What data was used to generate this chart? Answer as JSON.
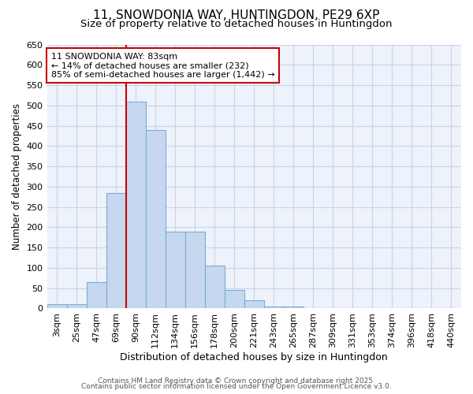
{
  "title1": "11, SNOWDONIA WAY, HUNTINGDON, PE29 6XP",
  "title2": "Size of property relative to detached houses in Huntingdon",
  "xlabel": "Distribution of detached houses by size in Huntingdon",
  "ylabel": "Number of detached properties",
  "bin_labels": [
    "3sqm",
    "25sqm",
    "47sqm",
    "69sqm",
    "90sqm",
    "112sqm",
    "134sqm",
    "156sqm",
    "178sqm",
    "200sqm",
    "221sqm",
    "243sqm",
    "265sqm",
    "287sqm",
    "309sqm",
    "331sqm",
    "353sqm",
    "374sqm",
    "396sqm",
    "418sqm",
    "440sqm"
  ],
  "bar_heights": [
    10,
    10,
    65,
    285,
    510,
    440,
    190,
    190,
    105,
    45,
    20,
    5,
    5,
    0,
    0,
    0,
    0,
    0,
    0,
    0,
    0
  ],
  "bar_color": "#c5d8f0",
  "bar_edge_color": "#7badd4",
  "red_line_x": 4,
  "ylim": [
    0,
    650
  ],
  "yticks": [
    0,
    50,
    100,
    150,
    200,
    250,
    300,
    350,
    400,
    450,
    500,
    550,
    600,
    650
  ],
  "annotation_text": "11 SNOWDONIA WAY: 83sqm\n← 14% of detached houses are smaller (232)\n85% of semi-detached houses are larger (1,442) →",
  "annotation_box_facecolor": "#ffffff",
  "annotation_box_edgecolor": "#cc0000",
  "background_color": "#ffffff",
  "plot_bg_color": "#edf2fb",
  "grid_color": "#c8d4e8",
  "footer1": "Contains HM Land Registry data © Crown copyright and database right 2025.",
  "footer2": "Contains public sector information licensed under the Open Government Licence v3.0.",
  "title_fontsize": 11,
  "subtitle_fontsize": 9.5,
  "xlabel_fontsize": 9,
  "ylabel_fontsize": 8.5,
  "tick_fontsize": 8,
  "annotation_fontsize": 8,
  "footer_fontsize": 6.5
}
